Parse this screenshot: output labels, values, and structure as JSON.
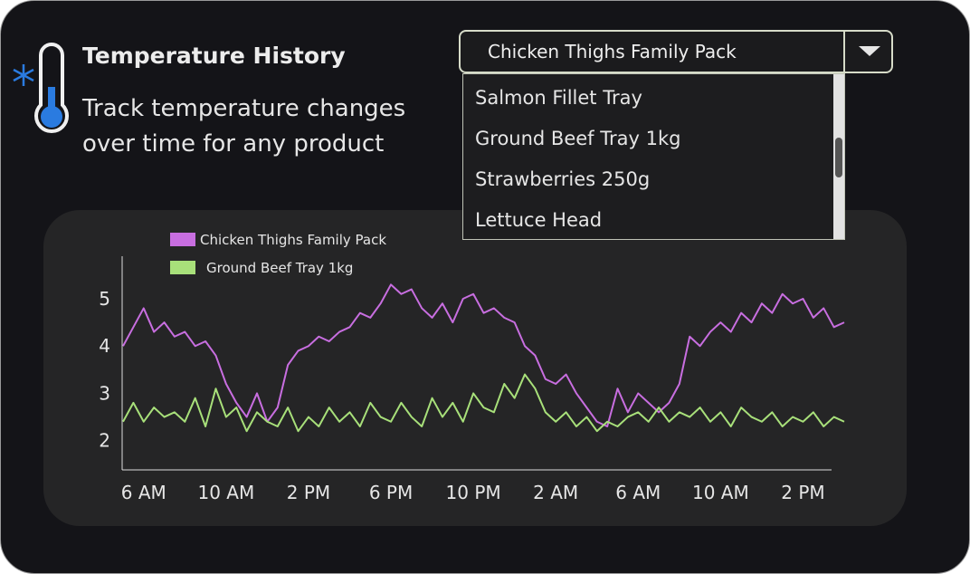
{
  "header": {
    "title": "Temperature History",
    "subtitle": "Track temperature changes over time for any product"
  },
  "dropdown": {
    "selected": "Chicken Thighs Family Pack",
    "options": [
      "Salmon Fillet Tray",
      "Ground Beef Tray 1kg",
      "Strawberries 250g",
      "Lettuce Head"
    ]
  },
  "chart_data": {
    "type": "line",
    "legend": "top-left",
    "grid": false,
    "x": [
      5,
      5.5,
      6,
      6.5,
      7,
      7.5,
      8,
      8.5,
      9,
      9.5,
      10,
      10.5,
      11,
      11.5,
      12,
      12.5,
      13,
      13.5,
      14,
      14.5,
      15,
      15.5,
      16,
      16.5,
      17,
      17.5,
      18,
      18.5,
      19,
      19.5,
      20,
      20.5,
      21,
      21.5,
      22,
      22.5,
      23,
      23.5,
      24,
      24.5,
      25,
      25.5,
      26,
      26.5,
      27,
      27.5,
      28,
      28.5,
      29,
      29.5,
      30,
      30.5,
      31,
      31.5,
      32,
      32.5,
      33,
      33.5,
      34,
      34.5,
      35,
      35.5,
      36,
      36.5,
      37,
      37.5,
      38,
      38.5,
      39,
      39.5,
      40
    ],
    "xlim": [
      5,
      40
    ],
    "xticks": [
      {
        "value": 6,
        "label": "6 AM"
      },
      {
        "value": 10,
        "label": "10 AM"
      },
      {
        "value": 14,
        "label": "2 PM"
      },
      {
        "value": 18,
        "label": "6 PM"
      },
      {
        "value": 22,
        "label": "10 PM"
      },
      {
        "value": 26,
        "label": "2 AM"
      },
      {
        "value": 30,
        "label": "6 AM"
      },
      {
        "value": 34,
        "label": "10 AM"
      },
      {
        "value": 38,
        "label": "2 PM"
      }
    ],
    "ylim": [
      1.4,
      5.9
    ],
    "yticks": [
      2,
      3,
      4,
      5
    ],
    "series": [
      {
        "name": "Chicken Thighs Family Pack",
        "color": "#c86ee0",
        "values": [
          4.0,
          4.4,
          4.8,
          4.3,
          4.5,
          4.2,
          4.3,
          4.0,
          4.1,
          3.8,
          3.2,
          2.8,
          2.5,
          3.0,
          2.4,
          2.7,
          3.6,
          3.9,
          4.0,
          4.2,
          4.1,
          4.3,
          4.4,
          4.7,
          4.6,
          4.9,
          5.3,
          5.1,
          5.2,
          4.8,
          4.6,
          4.9,
          4.5,
          5.0,
          5.1,
          4.7,
          4.8,
          4.6,
          4.5,
          4.0,
          3.8,
          3.3,
          3.2,
          3.4,
          3.0,
          2.7,
          2.4,
          2.3,
          3.1,
          2.6,
          3.0,
          2.8,
          2.6,
          2.8,
          3.2,
          4.2,
          4.0,
          4.3,
          4.5,
          4.3,
          4.7,
          4.5,
          4.9,
          4.7,
          5.1,
          4.9,
          5.0,
          4.6,
          4.8,
          4.4,
          4.5
        ]
      },
      {
        "name": "Ground Beef Tray 1kg",
        "color": "#a8e07a",
        "values": [
          2.4,
          2.8,
          2.4,
          2.7,
          2.5,
          2.6,
          2.4,
          2.9,
          2.3,
          3.1,
          2.5,
          2.7,
          2.2,
          2.6,
          2.4,
          2.3,
          2.7,
          2.2,
          2.5,
          2.3,
          2.7,
          2.4,
          2.6,
          2.3,
          2.8,
          2.5,
          2.4,
          2.8,
          2.5,
          2.3,
          2.9,
          2.5,
          2.8,
          2.4,
          3.0,
          2.7,
          2.6,
          3.2,
          2.9,
          3.4,
          3.1,
          2.6,
          2.4,
          2.6,
          2.3,
          2.5,
          2.2,
          2.4,
          2.3,
          2.5,
          2.6,
          2.4,
          2.7,
          2.4,
          2.6,
          2.5,
          2.7,
          2.4,
          2.6,
          2.3,
          2.7,
          2.5,
          2.4,
          2.6,
          2.3,
          2.5,
          2.4,
          2.6,
          2.3,
          2.5,
          2.4
        ]
      }
    ]
  }
}
